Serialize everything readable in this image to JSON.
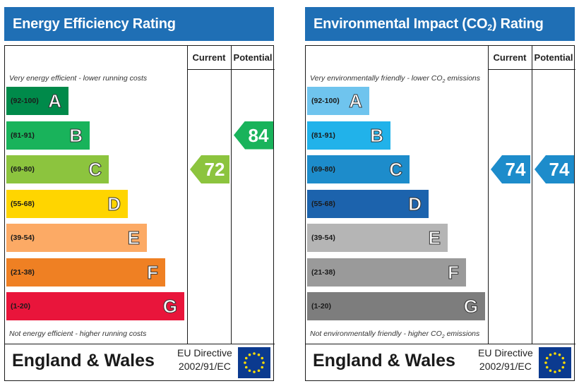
{
  "energy": {
    "title": "Energy Efficiency Rating",
    "col_current": "Current",
    "col_potential": "Potential",
    "note_top": "Very energy efficient - lower running costs",
    "note_bottom": "Not energy efficient - higher running costs",
    "bands": [
      {
        "range": "(92-100)",
        "letter": "A",
        "color": "#008a4a",
        "width_pct": 0.23
      },
      {
        "range": "(81-91)",
        "letter": "B",
        "color": "#19b35b",
        "width_pct": 0.31
      },
      {
        "range": "(69-80)",
        "letter": "C",
        "color": "#8cc43e",
        "width_pct": 0.38
      },
      {
        "range": "(55-68)",
        "letter": "D",
        "color": "#ffd500",
        "width_pct": 0.45
      },
      {
        "range": "(39-54)",
        "letter": "E",
        "color": "#fcaa65",
        "width_pct": 0.52
      },
      {
        "range": "(21-38)",
        "letter": "F",
        "color": "#ef8023",
        "width_pct": 0.59
      },
      {
        "range": "(1-20)",
        "letter": "G",
        "color": "#e9153b",
        "width_pct": 0.66
      }
    ],
    "current": {
      "value": "72",
      "band": "C",
      "color": "#8cc43e"
    },
    "potential": {
      "value": "84",
      "band": "B",
      "color": "#19b35b"
    },
    "region": "England & Wales",
    "directive_line1": "EU Directive",
    "directive_line2": "2002/91/EC"
  },
  "environment": {
    "title_prefix": "Environmental Impact (CO",
    "title_sub": "2",
    "title_suffix": ") Rating",
    "col_current": "Current",
    "col_potential": "Potential",
    "note_top_prefix": "Very environmentally friendly - lower CO",
    "note_top_sub": "2",
    "note_top_suffix": " emissions",
    "note_bottom_prefix": "Not environmentally friendly - higher CO",
    "note_bottom_sub": "2",
    "note_bottom_suffix": " emissions",
    "bands": [
      {
        "range": "(92-100)",
        "letter": "A",
        "color": "#6fc4ee",
        "width_pct": 0.23
      },
      {
        "range": "(81-91)",
        "letter": "B",
        "color": "#21b2ea",
        "width_pct": 0.31
      },
      {
        "range": "(69-80)",
        "letter": "C",
        "color": "#1d8ccb",
        "width_pct": 0.38
      },
      {
        "range": "(55-68)",
        "letter": "D",
        "color": "#1c63ad",
        "width_pct": 0.45
      },
      {
        "range": "(39-54)",
        "letter": "E",
        "color": "#b5b5b5",
        "width_pct": 0.52
      },
      {
        "range": "(21-38)",
        "letter": "F",
        "color": "#9a9a9a",
        "width_pct": 0.59
      },
      {
        "range": "(1-20)",
        "letter": "G",
        "color": "#7d7d7d",
        "width_pct": 0.66
      }
    ],
    "current": {
      "value": "74",
      "band": "C",
      "color": "#1d8ccb"
    },
    "potential": {
      "value": "74",
      "band": "C",
      "color": "#1d8ccb"
    },
    "region": "England & Wales",
    "directive_line1": "EU Directive",
    "directive_line2": "2002/91/EC"
  }
}
